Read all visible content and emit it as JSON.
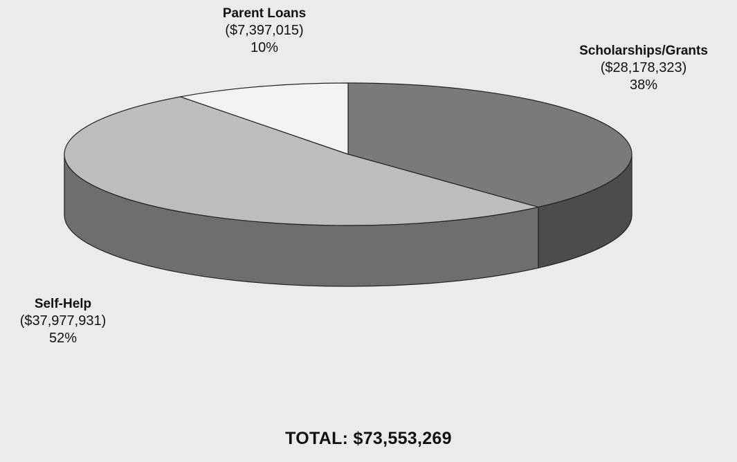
{
  "chart_data": {
    "type": "pie",
    "title": "",
    "slices": [
      {
        "label": "Scholarships/Grants",
        "amount": "($28,178,323)",
        "percent": "38%",
        "value": 28178323,
        "color": "#7a7a7a"
      },
      {
        "label": "Self-Help",
        "amount": "($37,977,931)",
        "percent": "52%",
        "value": 37977931,
        "color": "#bdbdbd"
      },
      {
        "label": "Parent Loans",
        "amount": "($7,397,015)",
        "percent": "10%",
        "value": 7397015,
        "color": "#f3f3f3"
      }
    ],
    "total_label": "TOTAL:  $73,553,269"
  }
}
